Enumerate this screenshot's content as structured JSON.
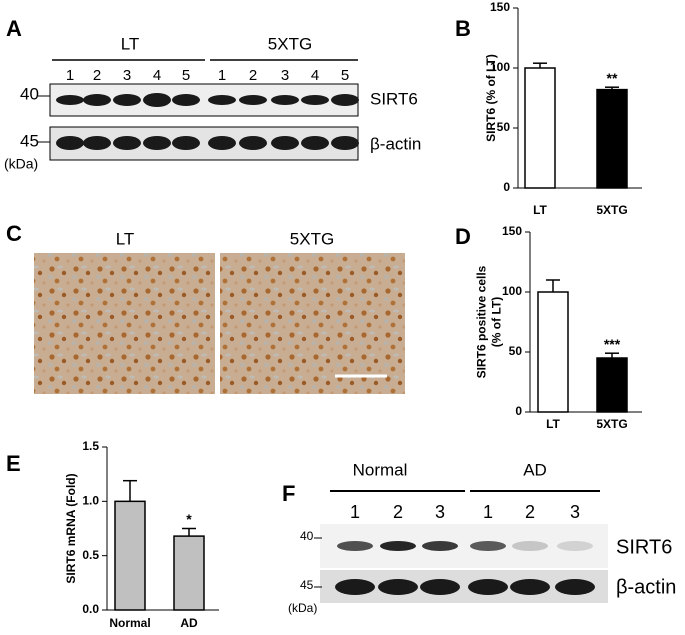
{
  "panels": {
    "a": {
      "letter": "A",
      "groups": [
        "LT",
        "5XTG"
      ],
      "lanes": [
        "1",
        "2",
        "3",
        "4",
        "5",
        "1",
        "2",
        "3",
        "4",
        "5"
      ],
      "mw": [
        "40",
        "45"
      ],
      "unit": "(kDa)",
      "proteins": [
        "SIRT6",
        "β-actin"
      ]
    },
    "c": {
      "letter": "C",
      "images": [
        "LT",
        "5XTG"
      ]
    },
    "f": {
      "letter": "F",
      "groups": [
        "Normal",
        "AD"
      ],
      "lanes": [
        "1",
        "2",
        "3",
        "1",
        "2",
        "3"
      ],
      "mw": [
        "40",
        "45"
      ],
      "unit": "(kDa)",
      "proteins": [
        "SIRT6",
        "β-actin"
      ]
    }
  },
  "chart_data": [
    {
      "type": "bar",
      "letter": "B",
      "ylabel": [
        "SIRT6 (% of LT)"
      ],
      "categories": [
        "LT",
        "5XTG"
      ],
      "values": [
        100,
        82
      ],
      "errors": [
        4,
        2
      ],
      "colors": [
        "#ffffff",
        "#000000"
      ],
      "annotations": [
        null,
        "**"
      ],
      "ylim": [
        0,
        150
      ],
      "yticks": [
        0,
        50,
        100,
        150
      ]
    },
    {
      "type": "bar",
      "letter": "D",
      "ylabel": [
        "SIRT6 positive cells",
        "(% of LT)"
      ],
      "categories": [
        "LT",
        "5XTG"
      ],
      "values": [
        100,
        45
      ],
      "errors": [
        10,
        4
      ],
      "colors": [
        "#ffffff",
        "#000000"
      ],
      "annotations": [
        null,
        "***"
      ],
      "ylim": [
        0,
        150
      ],
      "yticks": [
        0,
        50,
        100,
        150
      ]
    },
    {
      "type": "bar",
      "letter": "E",
      "ylabel": [
        "SIRT6 mRNA (Fold)"
      ],
      "categories": [
        "Normal",
        "AD"
      ],
      "values": [
        1.0,
        0.68
      ],
      "errors": [
        0.19,
        0.07
      ],
      "colors": [
        "#c0c0c0",
        "#c0c0c0"
      ],
      "annotations": [
        null,
        "*"
      ],
      "ylim": [
        0,
        1.5
      ],
      "yticks": [
        {
          "value": 0,
          "label": "0.0"
        },
        {
          "value": 0.5,
          "label": "0.5"
        },
        {
          "value": 1,
          "label": "1.0"
        },
        {
          "value": 1.5,
          "label": "1.5"
        }
      ]
    }
  ]
}
